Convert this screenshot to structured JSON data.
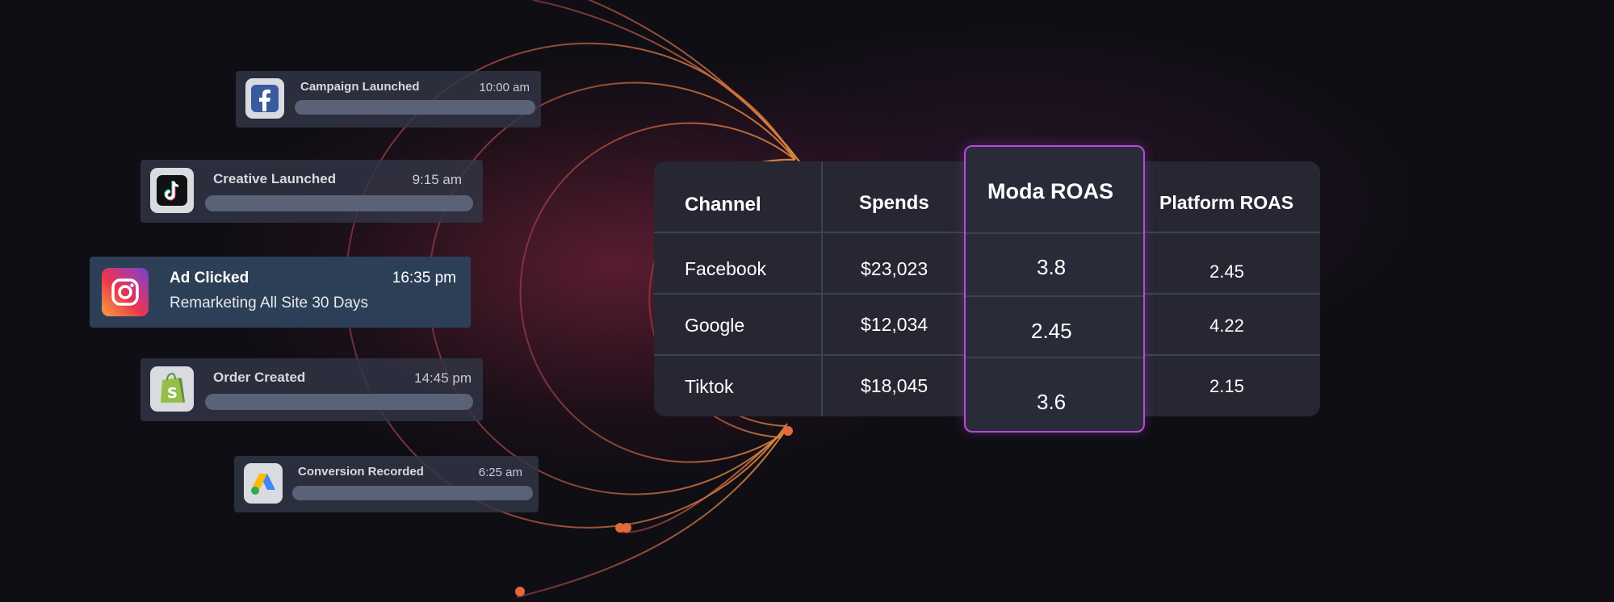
{
  "events": [
    {
      "title": "Campaign Launched",
      "time": "10:00 am",
      "icon": "facebook-icon"
    },
    {
      "title": "Creative Launched",
      "time": "9:15 am",
      "icon": "tiktok-icon"
    },
    {
      "title": "Ad Clicked",
      "time": "16:35 pm",
      "subtitle": "Remarketing All Site 30 Days",
      "icon": "instagram-icon"
    },
    {
      "title": "Order Created",
      "time": "14:45 pm",
      "icon": "shopify-icon"
    },
    {
      "title": "Conversion Recorded",
      "time": "6:25 am",
      "icon": "google-ads-icon"
    }
  ],
  "table": {
    "headers": [
      "Channel",
      "Spends",
      "Moda ROAS",
      "Platform ROAS"
    ],
    "rows": [
      {
        "channel": "Facebook",
        "spends": "$23,023",
        "moda_roas": "3.8",
        "platform_roas": "2.45"
      },
      {
        "channel": "Google",
        "spends": "$12,034",
        "moda_roas": "2.45",
        "platform_roas": "4.22"
      },
      {
        "channel": "Tiktok",
        "spends": "$18,045",
        "moda_roas": "3.6",
        "platform_roas": "2.15"
      }
    ]
  },
  "colors": {
    "background": "#0f0e14",
    "card": "#323646",
    "active_card": "#2d3f57",
    "table": "#262732",
    "highlight_border": "#b04ed8",
    "arc": "#d4683e"
  }
}
